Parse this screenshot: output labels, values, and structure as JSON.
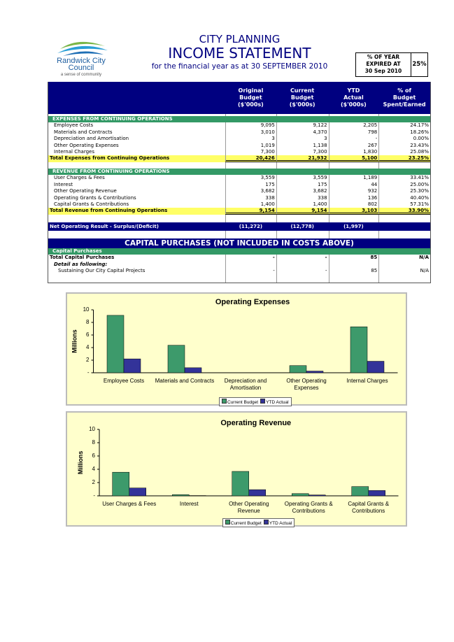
{
  "header": {
    "logo": {
      "name": "Randwick City",
      "name2": "Council",
      "tagline": "a sense of community"
    },
    "department": "CITY PLANNING",
    "title": "INCOME STATEMENT",
    "subtitle": "for the financial year as at 30 SEPTEMBER 2010",
    "year_expired": {
      "label": [
        "% OF YEAR",
        "EXPIRED AT",
        "30 Sep 2010"
      ],
      "value": "25%"
    }
  },
  "table": {
    "columns": [
      [
        "Original",
        "Budget",
        "($'000s)"
      ],
      [
        "Current",
        "Budget",
        "($'000s)"
      ],
      [
        "YTD",
        "Actual",
        "($'000s)"
      ],
      [
        "% of",
        "Budget",
        "Spent/Earned"
      ]
    ],
    "expenses": {
      "heading": "EXPENSES FROM CONTINUING OPERATIONS",
      "rows": [
        [
          "Employee Costs",
          "9,095",
          "9,122",
          "2,205",
          "24.17%"
        ],
        [
          "Materials and Contracts",
          "3,010",
          "4,370",
          "798",
          "18.26%"
        ],
        [
          "Depreciation and Amortisation",
          "3",
          "3",
          "-",
          "0.00%"
        ],
        [
          "Other Operating Expenses",
          "1,019",
          "1,138",
          "267",
          "23.43%"
        ],
        [
          "Internal Charges",
          "7,300",
          "7,300",
          "1,830",
          "25.08%"
        ]
      ],
      "total": [
        "Total Expenses from Continuing Operations",
        "20,426",
        "21,932",
        "5,100",
        "23.25%"
      ]
    },
    "revenue": {
      "heading": "REVENUE FROM CONTINUING OPERATIONS",
      "rows": [
        [
          "User Charges & Fees",
          "3,559",
          "3,559",
          "1,189",
          "33.41%"
        ],
        [
          "Interest",
          "175",
          "175",
          "44",
          "25.00%"
        ],
        [
          "Other Operating Revenue",
          "3,682",
          "3,682",
          "932",
          "25.30%"
        ],
        [
          "Operating Grants & Contributions",
          "338",
          "338",
          "136",
          "40.40%"
        ],
        [
          "Capital Grants & Contributions",
          "1,400",
          "1,400",
          "802",
          "57.31%"
        ]
      ],
      "total": [
        "Total Revenue from Continuing Operations",
        "9,154",
        "9,154",
        "3,103",
        "33.90%"
      ]
    },
    "net_result": [
      "Net Operating Result - Surplus/(Deficit)",
      "(11,272)",
      "(12,778)",
      "(1,997)"
    ],
    "capital": {
      "title": "CAPITAL PURCHASES (NOT INCLUDED IN COSTS ABOVE)",
      "heading": "Capital Purchases",
      "total": [
        "Total Capital Purchases",
        "-",
        "-",
        "85",
        "N/A"
      ],
      "detail_label": "Detail as following:",
      "rows": [
        [
          "Sustaining Our City Capital Projects",
          "-",
          "-",
          "85",
          "N/A"
        ]
      ]
    }
  },
  "chart_data": [
    {
      "type": "bar",
      "title": "Operating Expenses",
      "ylabel": "Millions",
      "categories": [
        "Employee Costs",
        "Materials and Contracts",
        "Depreciation and Amortisation",
        "Other Operating Expenses",
        "Internal Charges"
      ],
      "series": [
        {
          "name": "Current Budget",
          "color": "#3d9a6b",
          "values": [
            9.122,
            4.37,
            0.003,
            1.138,
            7.3
          ]
        },
        {
          "name": "YTD Actual",
          "color": "#333399",
          "values": [
            2.205,
            0.798,
            0,
            0.267,
            1.83
          ]
        }
      ],
      "ylim": [
        0,
        10
      ],
      "yticks": [
        {
          "value": 0,
          "label": "-"
        },
        2,
        4,
        6,
        8,
        10
      ],
      "legend": "bottom"
    },
    {
      "type": "bar",
      "title": "Operating Revenue",
      "ylabel": "Millions",
      "categories": [
        "User Charges & Fees",
        "Interest",
        "Other Operating Revenue",
        "Operating Grants & Contributions",
        "Capital Grants & Contributions"
      ],
      "series": [
        {
          "name": "Current Budget",
          "color": "#3d9a6b",
          "values": [
            3.559,
            0.175,
            3.682,
            0.338,
            1.4
          ]
        },
        {
          "name": "YTD Actual",
          "color": "#333399",
          "values": [
            1.189,
            0.044,
            0.932,
            0.136,
            0.802
          ]
        }
      ],
      "ylim": [
        0,
        10
      ],
      "yticks": [
        {
          "value": 0,
          "label": "-"
        },
        2,
        4,
        6,
        8,
        10
      ],
      "legend": "bottom"
    }
  ]
}
